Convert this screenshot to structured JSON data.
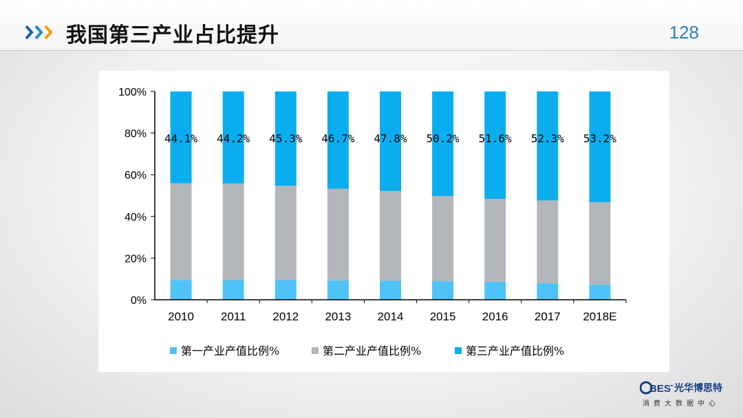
{
  "slide": {
    "title": "我国第三产业占比提升",
    "page_number": "128"
  },
  "logo": {
    "mark": "BEST",
    "name": "光华博思特",
    "subtitle": "消费大数据中心",
    "color": "#1a3f84"
  },
  "chart_data": {
    "type": "bar",
    "stacked": true,
    "categories": [
      "2010",
      "2011",
      "2012",
      "2013",
      "2014",
      "2015",
      "2016",
      "2017",
      "2018E"
    ],
    "series": [
      {
        "name": "第一产业产值比例%",
        "color": "#4fc3f7",
        "values": [
          9.5,
          9.4,
          9.4,
          9.3,
          9.1,
          8.9,
          8.6,
          7.9,
          7.2
        ]
      },
      {
        "name": "第二产业产值比例%",
        "color": "#b3b6bb",
        "values": [
          46.4,
          46.4,
          45.3,
          44.0,
          43.1,
          40.9,
          39.8,
          39.8,
          39.6
        ]
      },
      {
        "name": "第三产业产值比例%",
        "color": "#0aaeef",
        "values": [
          44.1,
          44.2,
          45.3,
          46.7,
          47.8,
          50.2,
          51.6,
          52.3,
          53.2
        ]
      }
    ],
    "data_labels": [
      "44.1%",
      "44.2%",
      "45.3%",
      "46.7%",
      "47.8%",
      "50.2%",
      "51.6%",
      "52.3%",
      "53.2%"
    ],
    "y_ticks": [
      "0%",
      "20%",
      "40%",
      "60%",
      "80%",
      "100%"
    ],
    "ylim": [
      0,
      100
    ],
    "legend_position": "bottom",
    "grid": false
  }
}
